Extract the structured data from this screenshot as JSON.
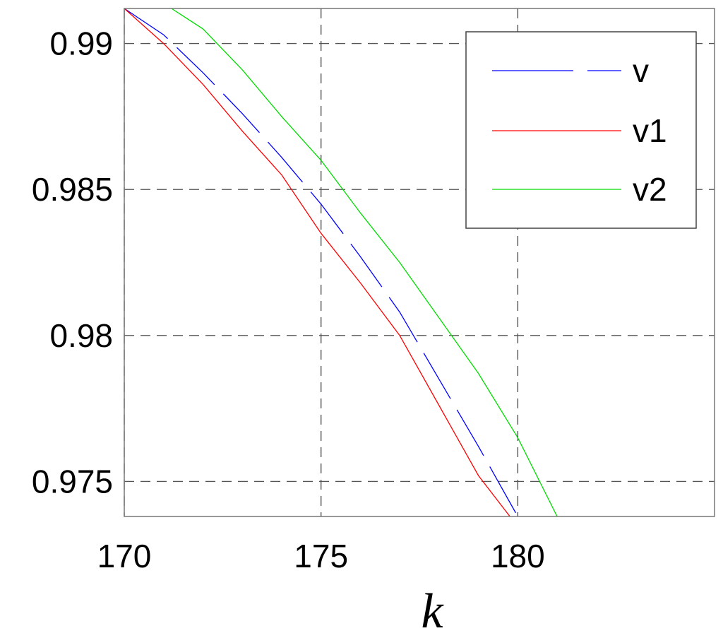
{
  "chart_data": {
    "type": "line",
    "title": "",
    "xlabel": "k",
    "ylabel": "",
    "xlim": [
      170,
      185
    ],
    "ylim": [
      0.9738,
      0.9912
    ],
    "grid": true,
    "legend": "top-right",
    "x_ticks": [
      170,
      175,
      180
    ],
    "y_ticks": [
      0.99,
      0.985,
      0.98,
      0.975
    ],
    "x_tick_labels": [
      "170",
      "175",
      "180"
    ],
    "y_tick_labels": [
      "0.99",
      "0.985",
      "0.98",
      "0.975"
    ],
    "series": [
      {
        "name": "v",
        "color": "#0000ff",
        "style": "dashed",
        "points": [
          [
            170.0,
            0.9912
          ],
          [
            171.0,
            0.9903
          ],
          [
            172.0,
            0.989
          ],
          [
            173.0,
            0.9876
          ],
          [
            174.0,
            0.9861
          ],
          [
            175.0,
            0.9845
          ],
          [
            176.0,
            0.9827
          ],
          [
            177.0,
            0.9808
          ],
          [
            178.0,
            0.9785
          ],
          [
            179.0,
            0.9762
          ],
          [
            180.0,
            0.9738
          ]
        ]
      },
      {
        "name": "v1",
        "color": "#ff0000",
        "style": "solid",
        "points": [
          [
            170.0,
            0.9912
          ],
          [
            171.0,
            0.99
          ],
          [
            172.0,
            0.9886
          ],
          [
            173.0,
            0.987
          ],
          [
            174.0,
            0.9855
          ],
          [
            175.0,
            0.9835
          ],
          [
            176.0,
            0.9818
          ],
          [
            177.0,
            0.98
          ],
          [
            178.0,
            0.9776
          ],
          [
            179.0,
            0.9752
          ],
          [
            179.8,
            0.9738
          ]
        ]
      },
      {
        "name": "v2",
        "color": "#00dd00",
        "style": "solid",
        "points": [
          [
            171.2,
            0.9912
          ],
          [
            172.0,
            0.9905
          ],
          [
            173.0,
            0.9891
          ],
          [
            174.0,
            0.9875
          ],
          [
            175.0,
            0.986
          ],
          [
            176.0,
            0.9842
          ],
          [
            177.0,
            0.9825
          ],
          [
            178.0,
            0.9806
          ],
          [
            179.0,
            0.9787
          ],
          [
            180.0,
            0.9765
          ],
          [
            181.0,
            0.9738
          ]
        ]
      }
    ]
  }
}
